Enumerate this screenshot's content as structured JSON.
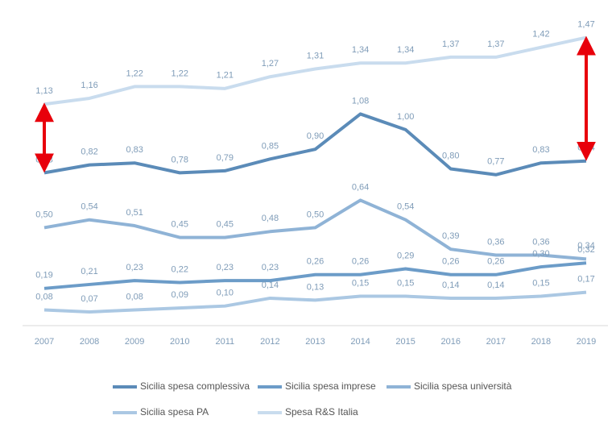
{
  "chart_data": {
    "type": "line",
    "categories": [
      "2007",
      "2008",
      "2009",
      "2010",
      "2011",
      "2012",
      "2013",
      "2014",
      "2015",
      "2016",
      "2017",
      "2018",
      "2019"
    ],
    "ylim": [
      0,
      1.6
    ],
    "series": [
      {
        "name": "Sicilia spesa complessiva",
        "color": "#5b8bb8",
        "values": [
          0.78,
          0.82,
          0.83,
          0.78,
          0.79,
          0.85,
          0.9,
          1.08,
          1.0,
          0.8,
          0.77,
          0.83,
          0.84
        ],
        "value_labels": [
          "0,78",
          "0,82",
          "0,83",
          "0,78",
          "0,79",
          "0,85",
          "0,90",
          "1,08",
          "1,00",
          "0,80",
          "0,77",
          "0,83",
          "0,84"
        ]
      },
      {
        "name": "Sicilia spesa imprese",
        "color": "#6c9cc8",
        "values": [
          0.19,
          0.21,
          0.23,
          0.22,
          0.23,
          0.23,
          0.26,
          0.26,
          0.29,
          0.26,
          0.26,
          0.3,
          0.32
        ],
        "value_labels": [
          "0,19",
          "0,21",
          "0,23",
          "0,22",
          "0,23",
          "0,23",
          "0,26",
          "0,26",
          "0,29",
          "0,26",
          "0,26",
          "0,30",
          "0,32"
        ]
      },
      {
        "name": "Sicilia spesa università",
        "color": "#8fb3d6",
        "values": [
          0.5,
          0.54,
          0.51,
          0.45,
          0.45,
          0.48,
          0.5,
          0.64,
          0.54,
          0.39,
          0.36,
          0.36,
          0.34
        ],
        "value_labels": [
          "0,50",
          "0,54",
          "0,51",
          "0,45",
          "0,45",
          "0,48",
          "0,50",
          "0,64",
          "0,54",
          "0,39",
          "0,36",
          "0,36",
          "0,34"
        ]
      },
      {
        "name": "Sicilia spesa PA",
        "color": "#abc8e3",
        "values": [
          0.08,
          0.07,
          0.08,
          0.09,
          0.1,
          0.14,
          0.13,
          0.15,
          0.15,
          0.14,
          0.14,
          0.15,
          0.17
        ],
        "value_labels": [
          "0,08",
          "0,07",
          "0,08",
          "0,09",
          "0,10",
          "0,14",
          "0,13",
          "0,15",
          "0,15",
          "0,14",
          "0,14",
          "0,15",
          "0,17"
        ]
      },
      {
        "name": "Spesa R&S Italia",
        "color": "#c9dcee",
        "values": [
          1.13,
          1.16,
          1.22,
          1.22,
          1.21,
          1.27,
          1.31,
          1.34,
          1.34,
          1.37,
          1.37,
          1.42,
          1.47
        ],
        "value_labels": [
          "1,13",
          "1,16",
          "1,22",
          "1,22",
          "1,21",
          "1,27",
          "1,31",
          "1,34",
          "1,34",
          "1,37",
          "1,37",
          "1,42",
          "1,47"
        ]
      }
    ]
  }
}
